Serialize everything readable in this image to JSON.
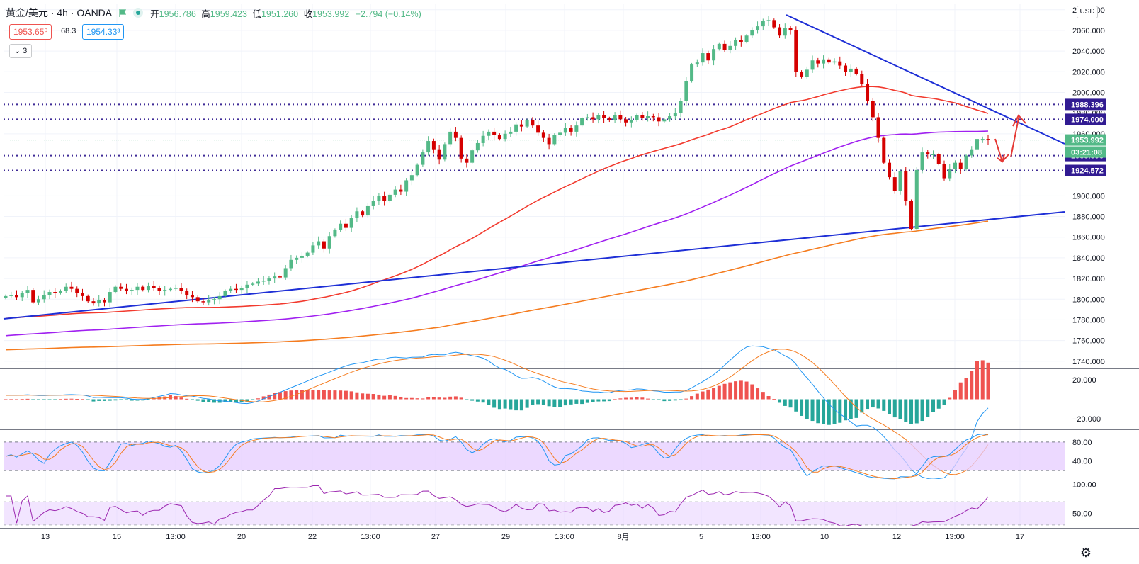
{
  "header": {
    "symbol": "黄金/美元 · 4h · OANDA",
    "open_label": "开",
    "open": "1956.786",
    "high_label": "高",
    "high": "1959.423",
    "low_label": "低",
    "low": "1951.260",
    "close_label": "收",
    "close": "1953.992",
    "change": "−2.794 (−0.14%)",
    "bid": "1953.65⁰",
    "spread": "68.3",
    "ask": "1954.33³",
    "indicators_collapse": "⌄ 3"
  },
  "currency_button": "USD",
  "settings_icon": "gear-icon",
  "colors": {
    "up": "#53b987",
    "down": "#d50000",
    "trendline": "#1e2fd6",
    "ma_red": "#f23a2e",
    "ma_purple": "#a020f0",
    "ma_orange": "#f57c1f",
    "level_line": "#3f2b96",
    "level_tag": "#311b92",
    "macd_line": "#2196f3",
    "signal_line": "#f57c1f",
    "hist_pos": "#ef5350",
    "hist_neg": "#26a69a",
    "osc_band": "#e6ccff"
  },
  "chart_data": [
    {
      "type": "candlestick",
      "y_axis": {
        "ticks": [
          "2080.000",
          "2060.000",
          "2040.000",
          "2020.000",
          "2000.000",
          "1980.000",
          "1960.000",
          "1900.000",
          "1880.000",
          "1860.000",
          "1840.000",
          "1820.000",
          "1800.000",
          "1780.000",
          "1760.000",
          "1740.000"
        ],
        "ylim": [
          1733,
          2086
        ]
      },
      "x_axis": {
        "ticks": [
          "13",
          "15",
          "13:00",
          "20",
          "22",
          "13:00",
          "27",
          "29",
          "13:00",
          "8月",
          "5",
          "13:00",
          "10",
          "12",
          "13:00",
          "17"
        ]
      },
      "candles_close": [
        1803,
        1804,
        1802,
        1806,
        1809,
        1797,
        1800,
        1804,
        1807,
        1806,
        1808,
        1812,
        1810,
        1806,
        1803,
        1798,
        1796,
        1799,
        1797,
        1807,
        1812,
        1810,
        1808,
        1809,
        1812,
        1809,
        1813,
        1811,
        1808,
        1809,
        1810,
        1811,
        1808,
        1804,
        1802,
        1798,
        1797,
        1799,
        1800,
        1803,
        1808,
        1810,
        1809,
        1811,
        1814,
        1815,
        1817,
        1818,
        1820,
        1822,
        1821,
        1830,
        1838,
        1840,
        1842,
        1845,
        1852,
        1856,
        1849,
        1861,
        1867,
        1873,
        1869,
        1879,
        1885,
        1881,
        1890,
        1895,
        1900,
        1895,
        1901,
        1906,
        1904,
        1915,
        1920,
        1930,
        1942,
        1953,
        1945,
        1935,
        1950,
        1962,
        1956,
        1936,
        1932,
        1944,
        1951,
        1958,
        1962,
        1959,
        1955,
        1960,
        1962,
        1969,
        1967,
        1973,
        1968,
        1961,
        1956,
        1950,
        1959,
        1961,
        1966,
        1962,
        1968,
        1975,
        1976,
        1974,
        1978,
        1975,
        1973,
        1978,
        1974,
        1971,
        1973,
        1978,
        1975,
        1977,
        1976,
        1972,
        1974,
        1977,
        1980,
        1992,
        2011,
        2027,
        2029,
        2038,
        2031,
        2042,
        2047,
        2041,
        2045,
        2051,
        2049,
        2055,
        2060,
        2064,
        2069,
        2070,
        2063,
        2055,
        2062,
        2060,
        2020,
        2015,
        2022,
        2031,
        2028,
        2032,
        2029,
        2030,
        2026,
        2020,
        2023,
        2018,
        2008,
        1992,
        1976,
        1956,
        1932,
        1918,
        1905,
        1924,
        1895,
        1868,
        1925,
        1942,
        1940,
        1940,
        1931,
        1917,
        1926,
        1932,
        1926,
        1939,
        1945,
        1955,
        1955,
        1954
      ],
      "moving_averages": [
        "ma-red",
        "ma-purple",
        "ma-orange"
      ],
      "horizontal_levels": [
        "1988.396",
        "1974.000",
        "1938.896",
        "1924.572"
      ],
      "last_price_tag": "1953.992",
      "countdown_tag": "03:21:08",
      "trendlines": [
        "descending-trendline",
        "ascending-trendline"
      ]
    },
    {
      "type": "macd",
      "y_axis": {
        "ticks": [
          "20.000",
          "−20.000"
        ],
        "ylim": [
          -31,
          31
        ]
      }
    },
    {
      "type": "stochastic",
      "y_axis": {
        "ticks": [
          "80.00",
          "40.00"
        ],
        "ylim": [
          -5,
          105
        ]
      }
    },
    {
      "type": "rsi",
      "y_axis": {
        "ticks": [
          "100.00",
          "50.00"
        ],
        "ylim": [
          25,
          102
        ]
      }
    }
  ]
}
